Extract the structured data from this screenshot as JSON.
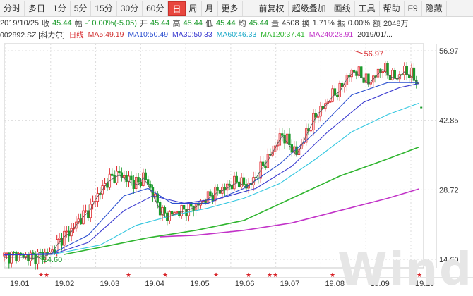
{
  "toolbar": {
    "buttons": [
      "分时",
      "多日",
      "1分",
      "5分",
      "15分",
      "30分",
      "60分",
      "日",
      "周",
      "月",
      "更多"
    ],
    "active": "日",
    "right_buttons": [
      "前复权",
      "超级叠加",
      "画线",
      "工具",
      "帮助",
      "F9",
      "隐藏"
    ]
  },
  "quote": {
    "date": "2019/10/25",
    "close_label": "收",
    "close": "45.44",
    "change_label": "幅",
    "change": "-10.00%(-5.05)",
    "open_label": "开",
    "open": "45.44",
    "high_label": "高",
    "high": "45.44",
    "low_label": "低",
    "low": "45.44",
    "avg_label": "均",
    "avg": "45.44",
    "vol_label": "量",
    "vol": "4508",
    "turnover_label": "换",
    "turnover": "1.71%",
    "amp_label": "振",
    "amp": "0.00%",
    "amount_label": "额",
    "amount": "2048万"
  },
  "ma_row": {
    "code": "002892.SZ [科力尔]",
    "period": "日线",
    "ma5": "MA5:49.19",
    "ma10": "MA10:50.49",
    "ma30": "MA30:50.33",
    "ma60": "MA60:46.33",
    "ma120": "MA120:37.41",
    "ma240": "MA240:28.91",
    "date_tail": "2019/01/..."
  },
  "colors": {
    "up": "#e0272d",
    "down": "#1b9a2c",
    "ma5": "#5a5a5a",
    "ma10": "#2c50d0",
    "ma30": "#3a3ad0",
    "ma60": "#33c7e0",
    "ma120": "#2fb52f",
    "ma240": "#c233c8",
    "grid": "#dcdcdc"
  },
  "chart_data": {
    "type": "candlestick",
    "x_ticks": [
      "19.01",
      "19.02",
      "19.03",
      "19.04",
      "19.05",
      "19.06",
      "19.07",
      "19.08",
      "19.09",
      "19.10"
    ],
    "y_ticks": [
      "56.97",
      "42.85",
      "28.72",
      "14.60"
    ],
    "y_range": [
      14.6,
      56.97
    ],
    "annotations": [
      {
        "text": "56.97",
        "type": "max"
      },
      {
        "text": "14.60",
        "type": "min"
      }
    ],
    "price_path": [
      [
        0,
        15.3
      ],
      [
        6,
        15.4
      ],
      [
        12,
        15.1
      ],
      [
        17,
        15.6
      ],
      [
        20,
        16.2
      ],
      [
        22,
        17.8
      ],
      [
        25,
        19.5
      ],
      [
        28,
        20.5
      ],
      [
        31,
        22.5
      ],
      [
        33,
        23.5
      ],
      [
        36,
        25.0
      ],
      [
        38,
        27.0
      ],
      [
        41,
        29.0
      ],
      [
        43,
        30.5
      ],
      [
        46,
        31.5
      ],
      [
        48,
        32.0
      ],
      [
        51,
        31.0
      ],
      [
        53,
        30.5
      ],
      [
        56,
        30.0
      ],
      [
        58,
        31.5
      ],
      [
        60,
        30.0
      ],
      [
        62,
        28.0
      ],
      [
        64,
        26.0
      ],
      [
        66,
        24.0
      ],
      [
        68,
        23.5
      ],
      [
        71,
        24.0
      ],
      [
        74,
        24.5
      ],
      [
        77,
        25.0
      ],
      [
        80,
        25.5
      ],
      [
        83,
        26.5
      ],
      [
        86,
        27.5
      ],
      [
        89,
        28.5
      ],
      [
        92,
        29.0
      ],
      [
        95,
        30.0
      ],
      [
        98,
        30.5
      ],
      [
        101,
        29.5
      ],
      [
        104,
        30.5
      ],
      [
        107,
        33.0
      ],
      [
        110,
        35.0
      ],
      [
        113,
        37.5
      ],
      [
        116,
        40.0
      ],
      [
        119,
        38.0
      ],
      [
        122,
        36.0
      ],
      [
        125,
        39.0
      ],
      [
        128,
        42.0
      ],
      [
        131,
        44.5
      ],
      [
        134,
        46.0
      ],
      [
        137,
        48.0
      ],
      [
        140,
        49.0
      ],
      [
        143,
        51.5
      ],
      [
        146,
        53.0
      ],
      [
        149,
        52.0
      ],
      [
        152,
        50.5
      ],
      [
        155,
        52.0
      ],
      [
        158,
        53.5
      ],
      [
        161,
        52.0
      ],
      [
        164,
        51.5
      ],
      [
        167,
        53.0
      ],
      [
        170,
        52.0
      ],
      [
        173,
        50.5
      ]
    ],
    "ma_paths": {
      "ma10": [
        [
          0,
          15.5
        ],
        [
          20,
          15.8
        ],
        [
          35,
          19.5
        ],
        [
          50,
          27.5
        ],
        [
          60,
          29.0
        ],
        [
          70,
          26.0
        ],
        [
          85,
          26.0
        ],
        [
          100,
          29.0
        ],
        [
          115,
          34.0
        ],
        [
          130,
          40.5
        ],
        [
          145,
          48.0
        ],
        [
          160,
          50.5
        ],
        [
          173,
          50.5
        ]
      ],
      "ma30": [
        [
          0,
          15.5
        ],
        [
          20,
          15.6
        ],
        [
          35,
          18.0
        ],
        [
          50,
          24.5
        ],
        [
          62,
          27.5
        ],
        [
          75,
          26.0
        ],
        [
          90,
          27.0
        ],
        [
          105,
          29.0
        ],
        [
          120,
          33.5
        ],
        [
          135,
          40.5
        ],
        [
          150,
          46.5
        ],
        [
          165,
          49.5
        ],
        [
          173,
          50.3
        ]
      ],
      "ma60": [
        [
          20,
          15.6
        ],
        [
          40,
          17.5
        ],
        [
          55,
          21.5
        ],
        [
          70,
          23.5
        ],
        [
          85,
          25.0
        ],
        [
          100,
          27.0
        ],
        [
          115,
          30.0
        ],
        [
          130,
          35.0
        ],
        [
          145,
          40.5
        ],
        [
          160,
          44.0
        ],
        [
          173,
          46.3
        ]
      ],
      "ma120": [
        [
          25,
          15.6
        ],
        [
          45,
          17.5
        ],
        [
          60,
          19.0
        ],
        [
          80,
          20.5
        ],
        [
          100,
          22.5
        ],
        [
          120,
          27.0
        ],
        [
          140,
          31.5
        ],
        [
          160,
          35.0
        ],
        [
          173,
          37.4
        ]
      ],
      "ma240": [
        [
          65,
          19.2
        ],
        [
          80,
          19.5
        ],
        [
          100,
          20.5
        ],
        [
          120,
          22.0
        ],
        [
          140,
          24.5
        ],
        [
          160,
          27.0
        ],
        [
          173,
          28.9
        ]
      ]
    },
    "event_marks": [
      "19.01",
      "19.01",
      "19.03",
      "19.04",
      "19.04",
      "19.06",
      "19.07",
      "19.07",
      "19.08",
      "19.09",
      "19.10"
    ]
  }
}
